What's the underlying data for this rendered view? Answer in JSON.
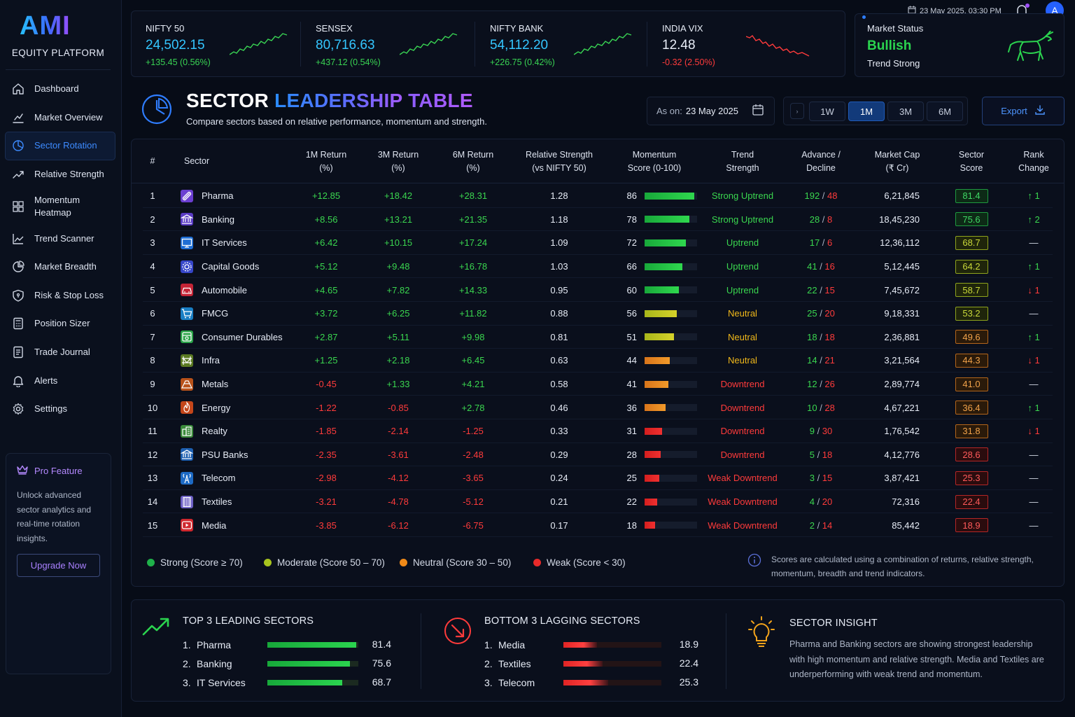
{
  "app": {
    "logo": "AMI",
    "subtitle": "EQUITY PLATFORM"
  },
  "topbar": {
    "datetime": "23 May 2025, 03:30 PM",
    "avatar_initial": "A"
  },
  "sidebar": {
    "items": [
      {
        "label": "Dashboard",
        "icon": "home-icon"
      },
      {
        "label": "Market Overview",
        "icon": "chart-line-icon"
      },
      {
        "label": "Sector Rotation",
        "icon": "pie-chart-icon",
        "active": true
      },
      {
        "label": "Relative Strength",
        "icon": "trend-arrow-icon"
      },
      {
        "label": "Momentum\nHeatmap",
        "icon": "grid-icon"
      },
      {
        "label": "Trend Scanner",
        "icon": "line-chart-icon"
      },
      {
        "label": "Market Breadth",
        "icon": "pie-icon"
      },
      {
        "label": "Risk & Stop Loss",
        "icon": "shield-icon"
      },
      {
        "label": "Position Sizer",
        "icon": "calculator-icon"
      },
      {
        "label": "Trade Journal",
        "icon": "journal-icon"
      },
      {
        "label": "Alerts",
        "icon": "bell-icon"
      },
      {
        "label": "Settings",
        "icon": "gear-icon"
      }
    ],
    "pro": {
      "title": "Pro Feature",
      "text": "Unlock advanced sector analytics and real-time rotation insights.",
      "button": "Upgrade Now"
    }
  },
  "tickers": [
    {
      "name": "NIFTY 50",
      "value": "24,502.15",
      "change": "+135.45 (0.56%)",
      "direction": "up"
    },
    {
      "name": "SENSEX",
      "value": "80,716.63",
      "change": "+437.12 (0.54%)",
      "direction": "up"
    },
    {
      "name": "NIFTY BANK",
      "value": "54,112.20",
      "change": "+226.75 (0.42%)",
      "direction": "up"
    },
    {
      "name": "INDIA VIX",
      "value": "12.48",
      "change": "-0.32 (2.50%)",
      "direction": "down"
    }
  ],
  "market_status": {
    "label": "Market Status",
    "value": "Bullish",
    "sub": "Trend Strong"
  },
  "header": {
    "title_part1": "SECTOR ",
    "title_part2": "LEADERSHIP",
    "title_part3": " TABLE",
    "subtitle": "Compare sectors based on relative performance, momentum and strength.",
    "as_on_label": "As on:",
    "as_on_date": "23 May 2025",
    "periods": [
      "1W",
      "1M",
      "3M",
      "6M"
    ],
    "active_period": "1M",
    "export_label": "Export"
  },
  "table": {
    "columns": [
      "#",
      "Sector",
      "1M Return\n(%)",
      "3M Return\n(%)",
      "6M Return\n(%)",
      "Relative Strength\n(vs NIFTY 50)",
      "Momentum\nScore (0-100)",
      "Trend\nStrength",
      "Advance /\nDecline",
      "Market Cap\n(₹ Cr)",
      "Sector\nScore",
      "Rank\nChange"
    ],
    "rows": [
      {
        "rank": "1",
        "sector": "Pharma",
        "r1m": "+12.85",
        "r3m": "+18.42",
        "r6m": "+28.31",
        "rs": "1.28",
        "momentum": 86,
        "trend": "Strong Uptrend",
        "adv": "192",
        "dec": "48",
        "mcap": "6,21,845",
        "score": "81.4",
        "rank_change": "↑ 1"
      },
      {
        "rank": "2",
        "sector": "Banking",
        "r1m": "+8.56",
        "r3m": "+13.21",
        "r6m": "+21.35",
        "rs": "1.18",
        "momentum": 78,
        "trend": "Strong Uptrend",
        "adv": "28",
        "dec": "8",
        "mcap": "18,45,230",
        "score": "75.6",
        "rank_change": "↑ 2"
      },
      {
        "rank": "3",
        "sector": "IT Services",
        "r1m": "+6.42",
        "r3m": "+10.15",
        "r6m": "+17.24",
        "rs": "1.09",
        "momentum": 72,
        "trend": "Uptrend",
        "adv": "17",
        "dec": "6",
        "mcap": "12,36,112",
        "score": "68.7",
        "rank_change": "—"
      },
      {
        "rank": "4",
        "sector": "Capital Goods",
        "r1m": "+5.12",
        "r3m": "+9.48",
        "r6m": "+16.78",
        "rs": "1.03",
        "momentum": 66,
        "trend": "Uptrend",
        "adv": "41",
        "dec": "16",
        "mcap": "5,12,445",
        "score": "64.2",
        "rank_change": "↑ 1"
      },
      {
        "rank": "5",
        "sector": "Automobile",
        "r1m": "+4.65",
        "r3m": "+7.82",
        "r6m": "+14.33",
        "rs": "0.95",
        "momentum": 60,
        "trend": "Uptrend",
        "adv": "22",
        "dec": "15",
        "mcap": "7,45,672",
        "score": "58.7",
        "rank_change": "↓ 1"
      },
      {
        "rank": "6",
        "sector": "FMCG",
        "r1m": "+3.72",
        "r3m": "+6.25",
        "r6m": "+11.82",
        "rs": "0.88",
        "momentum": 56,
        "trend": "Neutral",
        "adv": "25",
        "dec": "20",
        "mcap": "9,18,331",
        "score": "53.2",
        "rank_change": "—"
      },
      {
        "rank": "7",
        "sector": "Consumer Durables",
        "r1m": "+2.87",
        "r3m": "+5.11",
        "r6m": "+9.98",
        "rs": "0.81",
        "momentum": 51,
        "trend": "Neutral",
        "adv": "18",
        "dec": "18",
        "mcap": "2,36,881",
        "score": "49.6",
        "rank_change": "↑ 1"
      },
      {
        "rank": "8",
        "sector": "Infra",
        "r1m": "+1.25",
        "r3m": "+2.18",
        "r6m": "+6.45",
        "rs": "0.63",
        "momentum": 44,
        "trend": "Neutral",
        "adv": "14",
        "dec": "21",
        "mcap": "3,21,564",
        "score": "44.3",
        "rank_change": "↓ 1"
      },
      {
        "rank": "9",
        "sector": "Metals",
        "r1m": "-0.45",
        "r3m": "+1.33",
        "r6m": "+4.21",
        "rs": "0.58",
        "momentum": 41,
        "trend": "Downtrend",
        "adv": "12",
        "dec": "26",
        "mcap": "2,89,774",
        "score": "41.0",
        "rank_change": "—"
      },
      {
        "rank": "10",
        "sector": "Energy",
        "r1m": "-1.22",
        "r3m": "-0.85",
        "r6m": "+2.78",
        "rs": "0.46",
        "momentum": 36,
        "trend": "Downtrend",
        "adv": "10",
        "dec": "28",
        "mcap": "4,67,221",
        "score": "36.4",
        "rank_change": "↑ 1"
      },
      {
        "rank": "11",
        "sector": "Realty",
        "r1m": "-1.85",
        "r3m": "-2.14",
        "r6m": "-1.25",
        "rs": "0.33",
        "momentum": 31,
        "trend": "Downtrend",
        "adv": "9",
        "dec": "30",
        "mcap": "1,76,542",
        "score": "31.8",
        "rank_change": "↓ 1"
      },
      {
        "rank": "12",
        "sector": "PSU Banks",
        "r1m": "-2.35",
        "r3m": "-3.61",
        "r6m": "-2.48",
        "rs": "0.29",
        "momentum": 28,
        "trend": "Downtrend",
        "adv": "5",
        "dec": "18",
        "mcap": "4,12,776",
        "score": "28.6",
        "rank_change": "—"
      },
      {
        "rank": "13",
        "sector": "Telecom",
        "r1m": "-2.98",
        "r3m": "-4.12",
        "r6m": "-3.65",
        "rs": "0.24",
        "momentum": 25,
        "trend": "Weak Downtrend",
        "adv": "3",
        "dec": "15",
        "mcap": "3,87,421",
        "score": "25.3",
        "rank_change": "—"
      },
      {
        "rank": "14",
        "sector": "Textiles",
        "r1m": "-3.21",
        "r3m": "-4.78",
        "r6m": "-5.12",
        "rs": "0.21",
        "momentum": 22,
        "trend": "Weak Downtrend",
        "adv": "4",
        "dec": "20",
        "mcap": "72,316",
        "score": "22.4",
        "rank_change": "—"
      },
      {
        "rank": "15",
        "sector": "Media",
        "r1m": "-3.85",
        "r3m": "-6.12",
        "r6m": "-6.75",
        "rs": "0.17",
        "momentum": 18,
        "trend": "Weak Downtrend",
        "adv": "2",
        "dec": "14",
        "mcap": "85,442",
        "score": "18.9",
        "rank_change": "—"
      }
    ]
  },
  "legend": [
    {
      "label": "Strong (Score ≥ 70)",
      "color": "#1fb14a"
    },
    {
      "label": "Moderate (Score 50 – 70)",
      "color": "#a8c41e"
    },
    {
      "label": "Neutral (Score 30 – 50)",
      "color": "#f08a18"
    },
    {
      "label": "Weak (Score < 30)",
      "color": "#e82a2a"
    }
  ],
  "note": "Scores are calculated using a combination of returns, relative strength, momentum, breadth and trend indicators.",
  "leading": {
    "title": "TOP 3 LEADING SECTORS",
    "items": [
      {
        "n": "1.",
        "name": "Pharma",
        "score": "81.4",
        "level": 81.4
      },
      {
        "n": "2.",
        "name": "Banking",
        "score": "75.6",
        "level": 75.6
      },
      {
        "n": "3.",
        "name": "IT Services",
        "score": "68.7",
        "level": 68.7
      }
    ]
  },
  "lagging": {
    "title": "BOTTOM 3 LAGGING SECTORS",
    "items": [
      {
        "n": "1.",
        "name": "Media",
        "score": "18.9",
        "level": 18.9
      },
      {
        "n": "2.",
        "name": "Textiles",
        "score": "22.4",
        "level": 22.4
      },
      {
        "n": "3.",
        "name": "Telecom",
        "score": "25.3",
        "level": 25.3
      }
    ]
  },
  "insight": {
    "title": "SECTOR INSIGHT",
    "text": "Pharma and Banking sectors are showing strongest leadership with high momentum and relative strength. Media and Textiles are underperforming with weak trend and momentum."
  },
  "colors": {
    "up": "#39d353",
    "down": "#ff3b3b",
    "accent": "#3d8bff",
    "brand_purple": "#a35bff"
  }
}
